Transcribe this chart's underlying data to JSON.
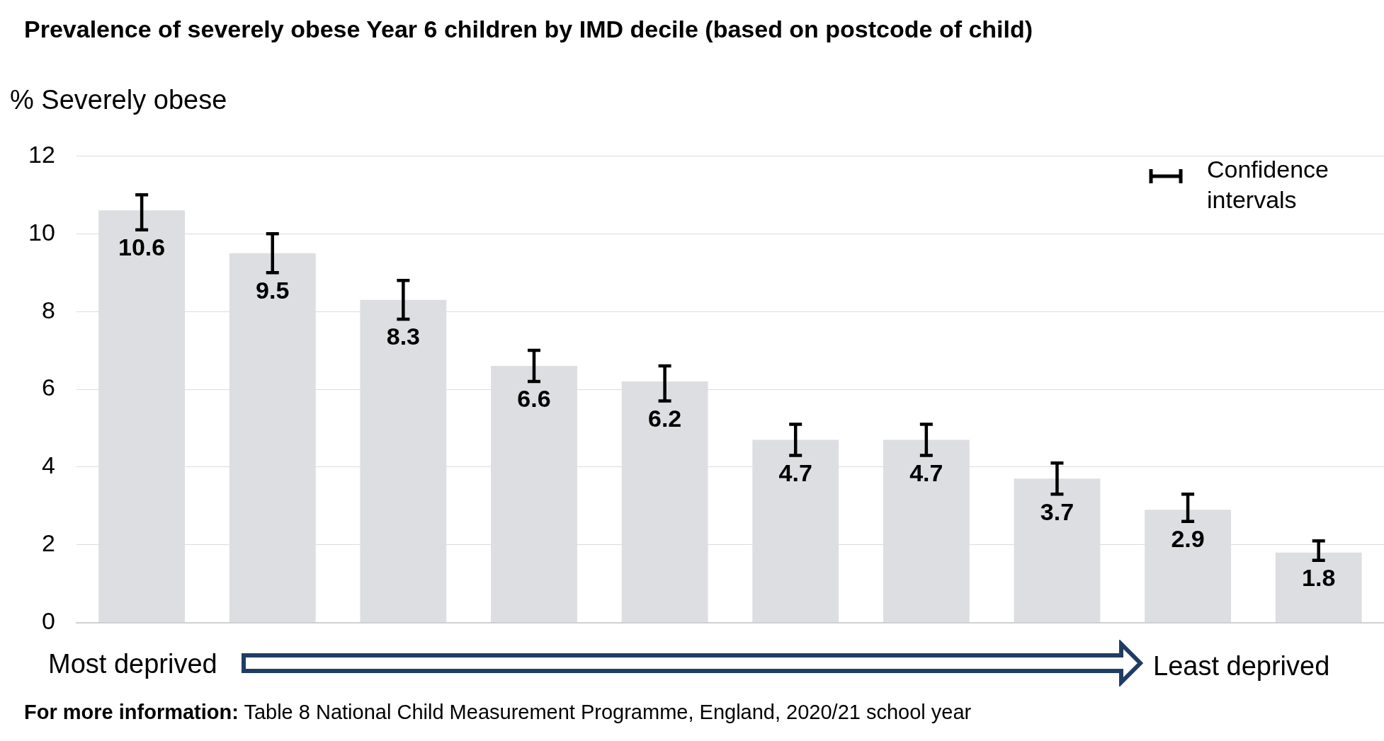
{
  "chart_data": {
    "type": "bar",
    "title": "Prevalence of severely obese Year 6 children by IMD decile (based on postcode of child)",
    "ylabel": "% Severely obese",
    "categories": [
      null,
      null,
      null,
      null,
      null,
      null,
      null,
      null,
      null,
      null
    ],
    "values": [
      10.6,
      9.5,
      8.3,
      6.6,
      6.2,
      4.7,
      4.7,
      3.7,
      2.9,
      1.8
    ],
    "errors": [
      [
        10.1,
        11.0
      ],
      [
        9.0,
        10.0
      ],
      [
        7.8,
        8.8
      ],
      [
        6.2,
        7.0
      ],
      [
        5.7,
        6.6
      ],
      [
        4.3,
        5.1
      ],
      [
        4.3,
        5.1
      ],
      [
        3.3,
        4.1
      ],
      [
        2.6,
        3.3
      ],
      [
        1.6,
        2.1
      ]
    ],
    "color": "#dcdee1",
    "data_labels": true,
    "ylim": [
      0,
      12
    ],
    "yticks": [
      0,
      2,
      4,
      6,
      8,
      10,
      12
    ],
    "grid": "y",
    "annotations": [
      "Confidence intervals",
      "Most deprived",
      "Least deprived",
      "For more information: Table 8 National Child Measurement Programme, England, 2020/21 school year"
    ]
  }
}
